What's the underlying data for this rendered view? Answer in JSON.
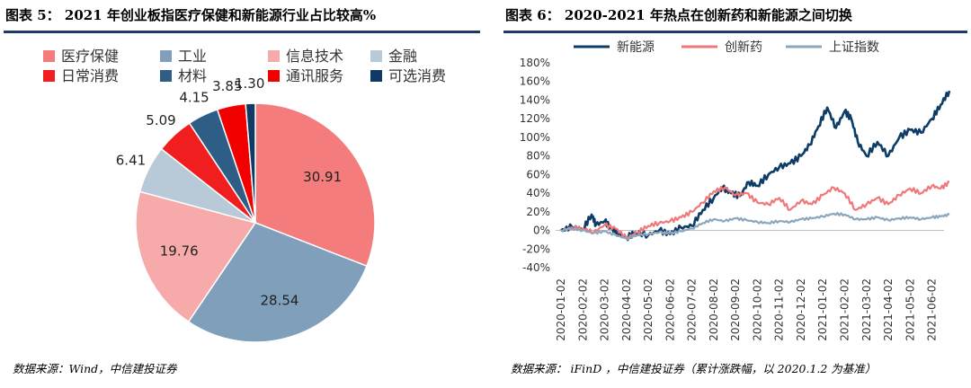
{
  "left": {
    "title": "图表 5：  2021 年创业板指医疗保健和新能源行业占比较高%",
    "source": "数据来源：Wind，中信建投证券",
    "chart_data": {
      "type": "pie",
      "title": "2021 年创业板指医疗保健和新能源行业占比较高%",
      "slices": [
        {
          "label": "医疗保健",
          "value": 30.91,
          "color": "#f47c7c",
          "text": "30.91"
        },
        {
          "label": "工业",
          "value": 28.54,
          "color": "#7f9fba",
          "text": "28.54"
        },
        {
          "label": "信息技术",
          "value": 19.76,
          "color": "#f6aaaa",
          "text": "19.76"
        },
        {
          "label": "金融",
          "value": 6.41,
          "color": "#b8cad8",
          "text": "6.41"
        },
        {
          "label": "日常消费",
          "value": 5.09,
          "color": "#f01e1e",
          "text": "5.09"
        },
        {
          "label": "材料",
          "value": 4.15,
          "color": "#2e5e85",
          "text": "4.15"
        },
        {
          "label": "通讯服务",
          "value": 3.85,
          "color": "#f20000",
          "text": "3.85"
        },
        {
          "label": "可选消费",
          "value": 1.3,
          "color": "#0f3a66",
          "text": "1.30"
        }
      ],
      "legend_position": "top"
    }
  },
  "right": {
    "title": "图表 6：  2020-2021 年热点在创新药和新能源之间切换",
    "source": "数据来源：  iFinD  ，中信建投证券（累计涨跌幅，以 2020.1.2 为基准）",
    "chart_data": {
      "type": "line",
      "title": "2020-2021 年热点在创新药和新能源之间切换",
      "x_ticks": [
        "2020-01-02",
        "2020-02-02",
        "2020-03-02",
        "2020-04-02",
        "2020-05-02",
        "2020-06-02",
        "2020-07-02",
        "2020-08-02",
        "2020-09-02",
        "2020-10-02",
        "2020-11-02",
        "2020-12-02",
        "2021-01-02",
        "2021-02-02",
        "2021-03-02",
        "2021-04-02",
        "2021-05-02",
        "2021-06-02"
      ],
      "y_ticks": [
        "180%",
        "160%",
        "140%",
        "120%",
        "100%",
        "80%",
        "60%",
        "40%",
        "20%",
        "0%",
        "-20%",
        "-40%"
      ],
      "ylim": [
        -40,
        180
      ],
      "y_unit": "%",
      "legend_position": "top",
      "series": [
        {
          "name": "新能源",
          "color": "#0d3c66",
          "points": [
            [
              0,
              0
            ],
            [
              0.5,
              4
            ],
            [
              1,
              1
            ],
            [
              1.4,
              17
            ],
            [
              1.6,
              6
            ],
            [
              2,
              10
            ],
            [
              2.3,
              2
            ],
            [
              2.6,
              -3
            ],
            [
              3,
              -8
            ],
            [
              3.4,
              -2
            ],
            [
              4,
              -5
            ],
            [
              4.5,
              0
            ],
            [
              5,
              -4
            ],
            [
              5.5,
              3
            ],
            [
              6,
              5
            ],
            [
              6.5,
              22
            ],
            [
              7,
              35
            ],
            [
              7.4,
              46
            ],
            [
              7.8,
              40
            ],
            [
              8.2,
              37
            ],
            [
              8.6,
              52
            ],
            [
              9,
              48
            ],
            [
              9.5,
              60
            ],
            [
              10,
              68
            ],
            [
              10.5,
              72
            ],
            [
              11,
              80
            ],
            [
              11.4,
              92
            ],
            [
              11.8,
              112
            ],
            [
              12.2,
              132
            ],
            [
              12.6,
              110
            ],
            [
              13,
              128
            ],
            [
              13.3,
              120
            ],
            [
              13.6,
              95
            ],
            [
              14,
              80
            ],
            [
              14.5,
              95
            ],
            [
              15,
              80
            ],
            [
              15.5,
              100
            ],
            [
              16,
              108
            ],
            [
              16.5,
              105
            ],
            [
              17,
              120
            ],
            [
              17.4,
              135
            ],
            [
              17.8,
              150
            ]
          ]
        },
        {
          "name": "创新药",
          "color": "#f07878",
          "points": [
            [
              0,
              0
            ],
            [
              0.5,
              3
            ],
            [
              1,
              2
            ],
            [
              1.5,
              -2
            ],
            [
              2,
              6
            ],
            [
              2.5,
              2
            ],
            [
              3,
              -8
            ],
            [
              3.5,
              -2
            ],
            [
              4,
              5
            ],
            [
              4.5,
              8
            ],
            [
              5,
              10
            ],
            [
              5.5,
              14
            ],
            [
              6,
              20
            ],
            [
              6.5,
              30
            ],
            [
              7,
              42
            ],
            [
              7.5,
              46
            ],
            [
              8,
              38
            ],
            [
              8.5,
              40
            ],
            [
              9,
              30
            ],
            [
              9.5,
              28
            ],
            [
              10,
              35
            ],
            [
              10.5,
              22
            ],
            [
              11,
              32
            ],
            [
              11.5,
              28
            ],
            [
              12,
              38
            ],
            [
              12.5,
              46
            ],
            [
              13,
              40
            ],
            [
              13.5,
              22
            ],
            [
              14,
              28
            ],
            [
              14.5,
              35
            ],
            [
              15,
              28
            ],
            [
              15.5,
              38
            ],
            [
              16,
              45
            ],
            [
              16.5,
              40
            ],
            [
              17,
              48
            ],
            [
              17.4,
              45
            ],
            [
              17.8,
              52
            ]
          ]
        },
        {
          "name": "上证指数",
          "color": "#8ca6bc",
          "points": [
            [
              0,
              0
            ],
            [
              0.5,
              2
            ],
            [
              1,
              0
            ],
            [
              1.5,
              -3
            ],
            [
              2,
              -1
            ],
            [
              2.5,
              -5
            ],
            [
              3,
              -9
            ],
            [
              3.5,
              -5
            ],
            [
              4,
              -4
            ],
            [
              4.5,
              -2
            ],
            [
              5,
              -3
            ],
            [
              5.5,
              -1
            ],
            [
              6,
              2
            ],
            [
              6.5,
              8
            ],
            [
              7,
              12
            ],
            [
              7.5,
              10
            ],
            [
              8,
              13
            ],
            [
              8.5,
              11
            ],
            [
              9,
              9
            ],
            [
              9.5,
              8
            ],
            [
              10,
              10
            ],
            [
              10.5,
              9
            ],
            [
              11,
              12
            ],
            [
              11.5,
              13
            ],
            [
              12,
              15
            ],
            [
              12.5,
              18
            ],
            [
              13,
              17
            ],
            [
              13.5,
              12
            ],
            [
              14,
              12
            ],
            [
              14.5,
              14
            ],
            [
              15,
              11
            ],
            [
              15.5,
              13
            ],
            [
              16,
              14
            ],
            [
              16.5,
              12
            ],
            [
              17,
              14
            ],
            [
              17.4,
              15
            ],
            [
              17.8,
              17
            ]
          ]
        }
      ]
    }
  }
}
